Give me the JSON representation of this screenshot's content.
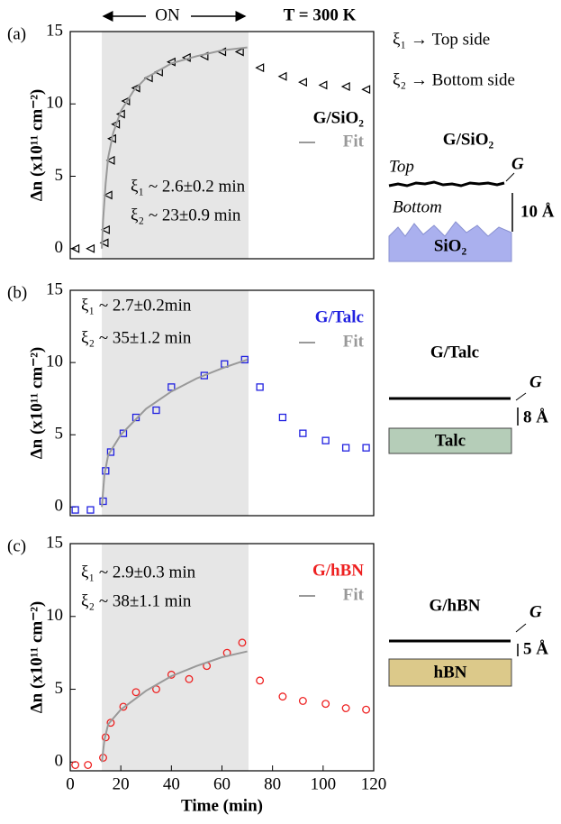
{
  "header": {
    "on": "ON",
    "temperature": "T = 300 K",
    "legend": [
      "ξ₁ → Top side",
      "ξ₂ → Bottom side"
    ]
  },
  "chart_data": [
    {
      "type": "scatter",
      "label": "(a)",
      "ylabel": "Δn (x10¹¹ cm⁻²)",
      "xlim": [
        0,
        120
      ],
      "ylim": [
        -0.7,
        15
      ],
      "yticks": [
        0,
        5,
        10,
        15
      ],
      "shade": [
        12.5,
        70.5
      ],
      "annotations": [
        "ξ₁ ~ 2.6±0.2 min",
        "ξ₂ ~ 23±0.9 min"
      ],
      "series": [
        {
          "name": "G/SiO₂",
          "color": "#000000",
          "marker": "triangle-left",
          "x": [
            2,
            8,
            13.5,
            14,
            15,
            16,
            16.5,
            18,
            20,
            22,
            26,
            31,
            35,
            40,
            46,
            53,
            60,
            67,
            75,
            84,
            92,
            100,
            109,
            117
          ],
          "values": [
            0,
            0,
            0.4,
            1.3,
            3.7,
            6.1,
            7.6,
            8.6,
            9.3,
            10.2,
            11.1,
            11.8,
            12.2,
            12.9,
            13.2,
            13.3,
            13.6,
            13.6,
            12.5,
            11.9,
            11.5,
            11.3,
            11.2,
            11.0
          ]
        },
        {
          "name": "Fit",
          "color": "#999999",
          "marker": "line",
          "x": [
            12.5,
            13,
            14,
            15,
            17,
            20,
            25,
            30,
            40,
            50,
            60,
            70
          ],
          "values": [
            0,
            2,
            4.5,
            6.3,
            8,
            9.5,
            10.9,
            11.8,
            12.8,
            13.3,
            13.7,
            13.9
          ]
        }
      ]
    },
    {
      "type": "scatter",
      "label": "(b)",
      "ylabel": "Δn (x10¹¹ cm⁻²)",
      "xlim": [
        0,
        120
      ],
      "ylim": [
        -0.6,
        15
      ],
      "yticks": [
        0,
        5,
        10,
        15
      ],
      "shade": [
        12.5,
        70.5
      ],
      "annotations": [
        "ξ₁ ~ 2.7±0.2min",
        "ξ₂ ~ 35±1.2 min"
      ],
      "series": [
        {
          "name": "G/Talc",
          "color": "#2020e0",
          "marker": "square",
          "x": [
            2,
            8,
            13,
            14,
            16,
            21,
            26,
            34,
            40,
            53,
            61,
            69,
            75,
            84,
            92,
            101,
            109,
            117
          ],
          "values": [
            -0.2,
            -0.2,
            0.4,
            2.5,
            3.8,
            5.1,
            6.2,
            6.7,
            8.3,
            9.1,
            9.9,
            10.2,
            8.3,
            6.2,
            5.1,
            4.6,
            4.1,
            4.1
          ]
        },
        {
          "name": "Fit",
          "color": "#999999",
          "marker": "line",
          "x": [
            12.5,
            13.5,
            15,
            20,
            30,
            40,
            50,
            60,
            70
          ],
          "values": [
            0,
            2.2,
            3.6,
            5.0,
            6.8,
            8.0,
            8.9,
            9.6,
            10.2
          ]
        }
      ]
    },
    {
      "type": "scatter",
      "label": "(c)",
      "ylabel": "Δn (x10¹¹ cm⁻²)",
      "xlabel": "Time (min)",
      "xlim": [
        0,
        120
      ],
      "ylim": [
        -0.6,
        15
      ],
      "yticks": [
        0,
        5,
        10,
        15
      ],
      "xticks": [
        0,
        20,
        40,
        60,
        80,
        100,
        120
      ],
      "shade": [
        12.5,
        70.5
      ],
      "annotations": [
        "ξ₁ ~ 2.9±0.3 min",
        "ξ₂ ~ 38±1.1 min"
      ],
      "series": [
        {
          "name": "G/hBN",
          "color": "#ee2020",
          "marker": "circle",
          "x": [
            2,
            7,
            13,
            14,
            16,
            21,
            26,
            34,
            40,
            47,
            54,
            62,
            68,
            75,
            84,
            92,
            101,
            109,
            117
          ],
          "values": [
            -0.2,
            -0.2,
            0.3,
            1.7,
            2.7,
            3.8,
            4.8,
            5.0,
            6.0,
            5.7,
            6.6,
            7.5,
            8.2,
            5.6,
            4.5,
            4.2,
            4.0,
            3.7,
            3.6
          ]
        },
        {
          "name": "Fit",
          "color": "#999999",
          "marker": "line",
          "x": [
            12.5,
            13.5,
            15,
            20,
            30,
            40,
            50,
            60,
            70
          ],
          "values": [
            0,
            1.5,
            2.6,
            3.6,
            4.9,
            5.9,
            6.6,
            7.2,
            7.6
          ]
        }
      ]
    }
  ],
  "diagrams": [
    {
      "title": "G/SiO₂",
      "top": "Top",
      "bottom": "Bottom",
      "layer": "G",
      "gap": "10 Å",
      "substrate": "SiO₂"
    },
    {
      "title": "G/Talc",
      "layer": "G",
      "gap": "8 Å",
      "substrate": "Talc"
    },
    {
      "title": "G/hBN",
      "layer": "G",
      "gap": "5 Å",
      "substrate": "hBN"
    }
  ]
}
